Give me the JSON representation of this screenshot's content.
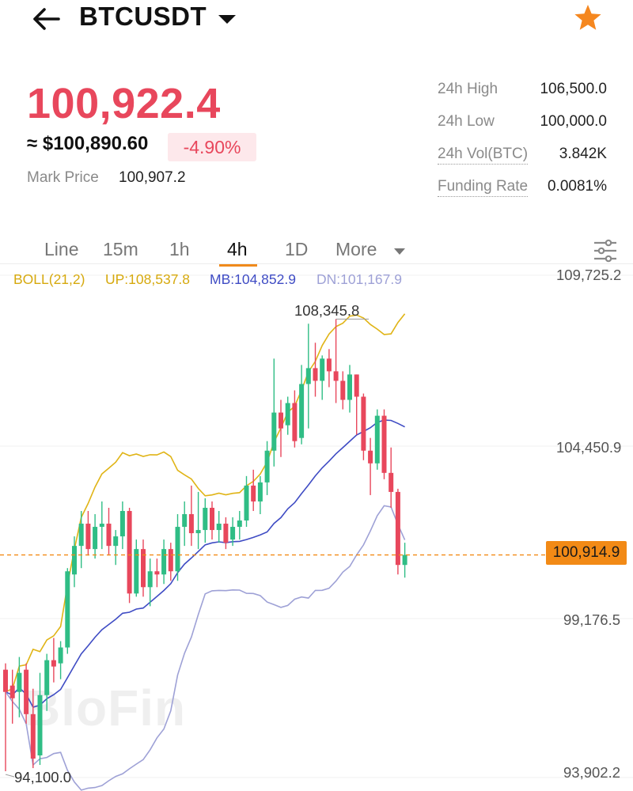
{
  "header": {
    "symbol": "BTCUSDT",
    "back_icon": "arrow-left-icon",
    "dropdown_icon": "caret-down-icon",
    "favorite_icon": "star-icon",
    "favorite_color": "#f5871f"
  },
  "price": {
    "last": "100,922.4",
    "usd": "≈ $100,890.60",
    "change": "-4.90%",
    "mark_label": "Mark Price",
    "mark_value": "100,907.2",
    "color_down": "#e8475c"
  },
  "stats": [
    {
      "label": "24h High",
      "value": "106,500.0"
    },
    {
      "label": "24h Low",
      "value": "100,000.0"
    },
    {
      "label": "24h Vol(BTC)",
      "value": "3.842K"
    },
    {
      "label": "Funding Rate",
      "value": "0.0081%"
    }
  ],
  "tabs": [
    "Line",
    "15m",
    "1h",
    "4h",
    "1D",
    "More"
  ],
  "active_tab": "4h",
  "indicator": {
    "name": "BOLL(21,2)",
    "up": "UP:108,537.8",
    "mb": "MB:104,852.9",
    "dn": "DN:101,167.9",
    "up_color": "#e0b416",
    "mb_color": "#3f4cc4",
    "dn_color": "#9ea1d6"
  },
  "axis": {
    "labels": [
      "109,725.2",
      "104,450.9",
      "99,176.5",
      "93,902.2"
    ],
    "current_price_tag": "100,914.9",
    "high_marker": "108,345.8",
    "low_marker": "94,100.0",
    "current_price_color": "#f28a16"
  },
  "watermark": "BloFin",
  "chart_data": {
    "type": "candlestick",
    "y_range": [
      93902.2,
      109725.2
    ],
    "up_color": "#2fbd85",
    "down_color": "#e8475c",
    "candles": [
      [
        97300,
        97500,
        94100,
        96600
      ],
      [
        96800,
        97300,
        95600,
        96400
      ],
      [
        96600,
        97700,
        95800,
        97200
      ],
      [
        97300,
        97500,
        95600,
        95900
      ],
      [
        95900,
        96700,
        94200,
        94500
      ],
      [
        94600,
        97200,
        94300,
        96500
      ],
      [
        96500,
        97800,
        96000,
        97600
      ],
      [
        97600,
        98300,
        96900,
        97400
      ],
      [
        97500,
        98200,
        97000,
        98000
      ],
      [
        98000,
        100500,
        97800,
        100400
      ],
      [
        100300,
        101500,
        99900,
        101200
      ],
      [
        101200,
        102300,
        100500,
        101900
      ],
      [
        101900,
        102300,
        100900,
        101100
      ],
      [
        101100,
        102200,
        100800,
        101800
      ],
      [
        101800,
        102600,
        101100,
        101900
      ],
      [
        101900,
        102400,
        100900,
        101200
      ],
      [
        101200,
        101700,
        100600,
        101500
      ],
      [
        101500,
        102600,
        101100,
        102300
      ],
      [
        102300,
        102400,
        99400,
        99700
      ],
      [
        99700,
        101400,
        99600,
        101100
      ],
      [
        101100,
        101400,
        99600,
        99900
      ],
      [
        99900,
        100800,
        99300,
        100400
      ],
      [
        100400,
        100800,
        99900,
        100300
      ],
      [
        100300,
        101400,
        100000,
        101100
      ],
      [
        101100,
        101300,
        100100,
        100400
      ],
      [
        100400,
        102200,
        100100,
        101800
      ],
      [
        101800,
        102600,
        101200,
        102200
      ],
      [
        102200,
        103100,
        101200,
        101600
      ],
      [
        101600,
        102900,
        101100,
        101700
      ],
      [
        101700,
        102700,
        101300,
        102400
      ],
      [
        102400,
        102600,
        101400,
        101700
      ],
      [
        101700,
        102300,
        101300,
        101900
      ],
      [
        101900,
        102100,
        101100,
        101300
      ],
      [
        101400,
        102100,
        101200,
        101800
      ],
      [
        101800,
        102300,
        101400,
        102000
      ],
      [
        102000,
        103400,
        101800,
        103100
      ],
      [
        103100,
        103600,
        102300,
        102600
      ],
      [
        102600,
        103400,
        102200,
        103200
      ],
      [
        103200,
        104500,
        102800,
        104200
      ],
      [
        104200,
        107100,
        103700,
        105400
      ],
      [
        105400,
        105800,
        104000,
        104900
      ],
      [
        105000,
        105900,
        104700,
        105700
      ],
      [
        105700,
        106100,
        104300,
        104500
      ],
      [
        104600,
        106900,
        104400,
        106300
      ],
      [
        106300,
        108200,
        104900,
        106800
      ],
      [
        106800,
        107600,
        105900,
        106400
      ],
      [
        106400,
        107200,
        105800,
        107100
      ],
      [
        107100,
        107400,
        106200,
        106700
      ],
      [
        106700,
        108346,
        105700,
        106400
      ],
      [
        106400,
        106700,
        105500,
        105800
      ],
      [
        105800,
        106900,
        105400,
        106600
      ],
      [
        106600,
        106600,
        104700,
        105900
      ],
      [
        105900,
        106000,
        103900,
        104200
      ],
      [
        104200,
        104600,
        102800,
        103800
      ],
      [
        103800,
        105500,
        103600,
        105300
      ],
      [
        105300,
        105500,
        103300,
        103500
      ],
      [
        103500,
        104300,
        102400,
        102900
      ],
      [
        102900,
        103000,
        100300,
        100600
      ],
      [
        100600,
        101300,
        100200,
        100915
      ]
    ]
  }
}
